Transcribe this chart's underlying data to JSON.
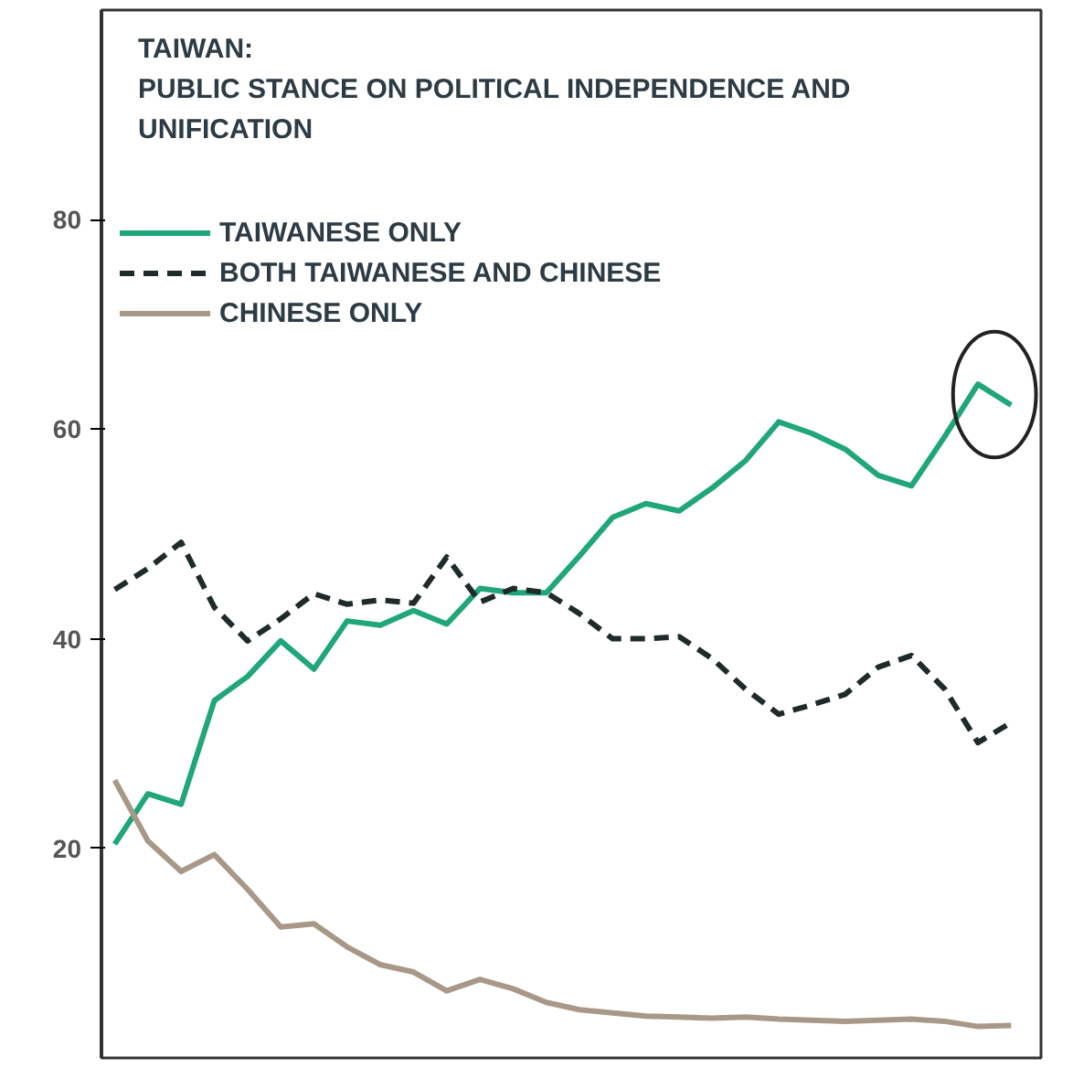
{
  "chart_data": {
    "type": "line",
    "title": "TAIWAN:",
    "subtitle": "PUBLIC STANCE ON POLITICAL INDEPENDENCE AND UNIFICATION",
    "categories": [
      null,
      null,
      null,
      null,
      null,
      null,
      null,
      null,
      null,
      null,
      null,
      null,
      null,
      null,
      null,
      null,
      null,
      null,
      null,
      null,
      null,
      null,
      null,
      null,
      null,
      null,
      null,
      null
    ],
    "series": [
      {
        "name": "TAIWANESE ONLY",
        "color": "#1fa67a",
        "line_style": "solid",
        "values": [
          20.4,
          25.2,
          24.2,
          34.1,
          36.4,
          39.8,
          37.1,
          41.7,
          41.3,
          42.7,
          41.4,
          44.8,
          44.4,
          44.4,
          47.9,
          51.6,
          52.9,
          52.2,
          54.4,
          57.0,
          60.7,
          59.6,
          58.1,
          55.6,
          54.6,
          59.3,
          64.3,
          62.3
        ]
      },
      {
        "name": "BOTH TAIWANESE AND CHINESE",
        "color": "#1f2a2a",
        "line_style": "dashed",
        "values": [
          44.7,
          46.7,
          49.2,
          43.0,
          39.8,
          41.9,
          44.3,
          43.3,
          43.7,
          43.4,
          47.8,
          43.5,
          44.8,
          44.4,
          42.4,
          40.0,
          40.0,
          40.2,
          38.1,
          35.2,
          32.8,
          33.7,
          34.7,
          37.3,
          38.4,
          35.2,
          30.1,
          32.0
        ]
      },
      {
        "name": "CHINESE ONLY",
        "color": "#a89888",
        "line_style": "solid",
        "values": [
          26.5,
          20.7,
          17.8,
          19.4,
          16.1,
          12.5,
          12.8,
          10.6,
          8.9,
          8.2,
          6.4,
          7.5,
          6.6,
          5.3,
          4.6,
          4.3,
          4.0,
          3.9,
          3.8,
          3.9,
          3.7,
          3.6,
          3.5,
          3.6,
          3.7,
          3.5,
          3.0,
          3.1
        ]
      }
    ],
    "ylim": [
      0,
      100
    ],
    "yticks": [
      20,
      40,
      60,
      80
    ],
    "grid": false,
    "legend": "top left",
    "tick_labels": "y"
  }
}
